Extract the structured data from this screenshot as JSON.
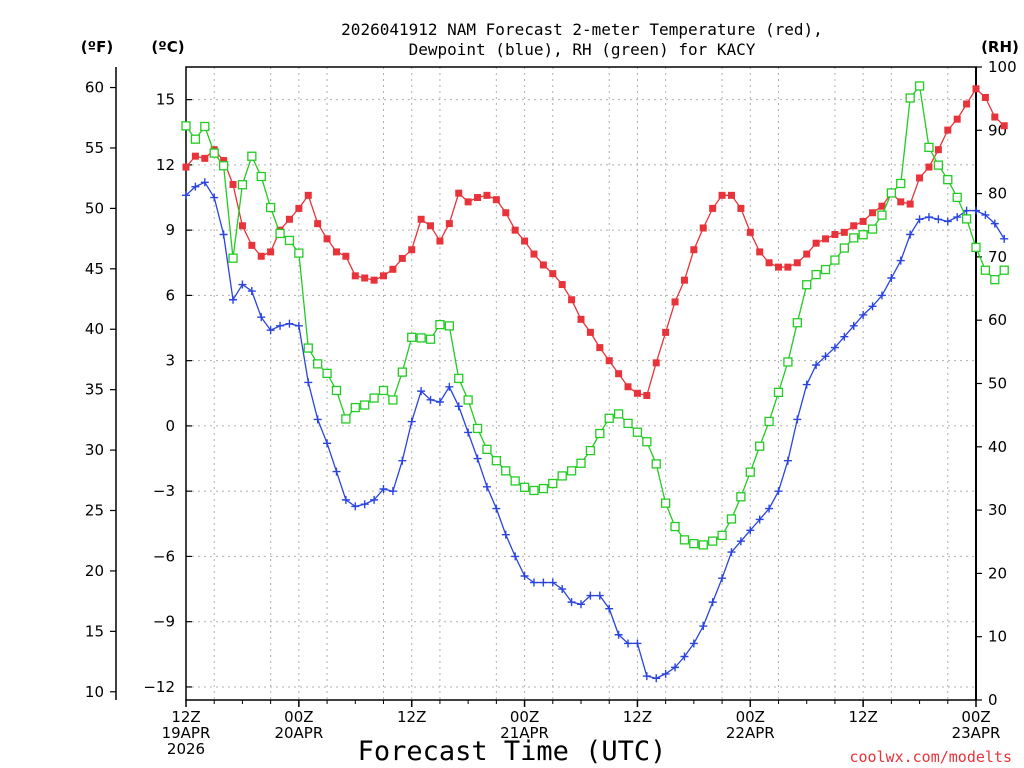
{
  "chart_data": {
    "type": "line",
    "title_line1": "2026041912 NAM Forecast 2-meter Temperature (red),",
    "title_line2": "Dewpoint (blue), RH (green) for KACY",
    "left_outer_unit": "(ºF)",
    "left_inner_unit": "(ºC)",
    "right_unit": "(RH)",
    "xlabel": "Forecast Time (UTC)",
    "credit": "coolwx.com/modelts",
    "x_range_hours": [
      0,
      84
    ],
    "celsius_range": [
      -12.6,
      16.5
    ],
    "rh_range": [
      0,
      100
    ],
    "celsius_ticks": [
      {
        "v": 15,
        "label": "15"
      },
      {
        "v": 12,
        "label": "12"
      },
      {
        "v": 9,
        "label": "9"
      },
      {
        "v": 6,
        "label": "6"
      },
      {
        "v": 3,
        "label": "3"
      },
      {
        "v": 0,
        "label": "0"
      },
      {
        "v": -3,
        "label": "−3"
      },
      {
        "v": -6,
        "label": "−6"
      },
      {
        "v": -9,
        "label": "−9"
      },
      {
        "v": -12,
        "label": "−12"
      }
    ],
    "fahrenheit_ticks": [
      {
        "v": 60,
        "label": "60"
      },
      {
        "v": 55,
        "label": "55"
      },
      {
        "v": 50,
        "label": "50"
      },
      {
        "v": 45,
        "label": "45"
      },
      {
        "v": 40,
        "label": "40"
      },
      {
        "v": 35,
        "label": "35"
      },
      {
        "v": 30,
        "label": "30"
      },
      {
        "v": 25,
        "label": "25"
      },
      {
        "v": 20,
        "label": "20"
      },
      {
        "v": 15,
        "label": "15"
      },
      {
        "v": 10,
        "label": "10"
      }
    ],
    "rh_ticks": [
      {
        "v": 100,
        "label": "100"
      },
      {
        "v": 90,
        "label": "90"
      },
      {
        "v": 80,
        "label": "80"
      },
      {
        "v": 70,
        "label": "70"
      },
      {
        "v": 60,
        "label": "60"
      },
      {
        "v": 50,
        "label": "50"
      },
      {
        "v": 40,
        "label": "40"
      },
      {
        "v": 30,
        "label": "30"
      },
      {
        "v": 20,
        "label": "20"
      },
      {
        "v": 10,
        "label": "10"
      },
      {
        "v": 0,
        "label": "0"
      }
    ],
    "x_ticks": [
      {
        "h": 0,
        "lines": [
          "12Z",
          "19APR",
          "2026"
        ]
      },
      {
        "h": 12,
        "lines": [
          "00Z",
          "20APR"
        ]
      },
      {
        "h": 24,
        "lines": [
          "12Z"
        ]
      },
      {
        "h": 36,
        "lines": [
          "00Z",
          "21APR"
        ]
      },
      {
        "h": 48,
        "lines": [
          "12Z"
        ]
      },
      {
        "h": 60,
        "lines": [
          "00Z",
          "22APR"
        ]
      },
      {
        "h": 72,
        "lines": [
          "12Z"
        ]
      },
      {
        "h": 84,
        "lines": [
          "00Z",
          "23APR"
        ]
      }
    ],
    "series": [
      {
        "name": "2-meter Temperature",
        "unit": "C",
        "color": "#e8333a",
        "marker": "square-filled",
        "values": [
          11.9,
          12.4,
          12.3,
          12.7,
          12.2,
          11.1,
          9.2,
          8.3,
          7.8,
          8.0,
          9.0,
          9.5,
          10.0,
          10.6,
          9.3,
          8.6,
          8.0,
          7.8,
          6.9,
          6.8,
          6.7,
          6.9,
          7.2,
          7.7,
          8.1,
          9.5,
          9.2,
          8.5,
          9.3,
          10.7,
          10.3,
          10.5,
          10.6,
          10.4,
          9.8,
          9.0,
          8.5,
          7.9,
          7.4,
          7.0,
          6.5,
          5.8,
          4.9,
          4.3,
          3.6,
          3.0,
          2.4,
          1.8,
          1.5,
          1.4,
          2.9,
          4.3,
          5.7,
          6.7,
          8.1,
          9.1,
          10.0,
          10.6,
          10.6,
          10.0,
          8.9,
          8.0,
          7.5,
          7.3,
          7.3,
          7.5,
          7.9,
          8.4,
          8.6,
          8.8,
          8.9,
          9.2,
          9.4,
          9.8,
          10.1,
          10.7,
          10.3,
          10.2,
          11.4,
          11.9,
          12.7,
          13.6,
          14.1,
          14.8,
          15.5,
          15.1,
          14.2,
          13.8
        ]
      },
      {
        "name": "Dewpoint",
        "unit": "C",
        "color": "#2a44e0",
        "marker": "plus",
        "values": [
          10.6,
          11.0,
          11.2,
          10.5,
          8.8,
          5.8,
          6.5,
          6.2,
          5.0,
          4.4,
          4.6,
          4.7,
          4.6,
          2.0,
          0.3,
          -0.8,
          -2.1,
          -3.4,
          -3.7,
          -3.6,
          -3.4,
          -2.9,
          -3.0,
          -1.6,
          0.2,
          1.6,
          1.2,
          1.1,
          1.8,
          0.9,
          -0.3,
          -1.5,
          -2.8,
          -3.8,
          -5.0,
          -6.0,
          -6.9,
          -7.2,
          -7.2,
          -7.2,
          -7.5,
          -8.1,
          -8.2,
          -7.8,
          -7.8,
          -8.4,
          -9.6,
          -10.0,
          -10.0,
          -11.5,
          -11.6,
          -11.4,
          -11.1,
          -10.6,
          -10.0,
          -9.2,
          -8.1,
          -7.0,
          -5.8,
          -5.3,
          -4.8,
          -4.3,
          -3.8,
          -3.0,
          -1.6,
          0.3,
          1.9,
          2.8,
          3.2,
          3.6,
          4.1,
          4.6,
          5.1,
          5.5,
          6.0,
          6.8,
          7.6,
          8.8,
          9.5,
          9.6,
          9.5,
          9.4,
          9.6,
          9.9,
          9.9,
          9.7,
          9.3,
          8.6
        ]
      },
      {
        "name": "RH",
        "unit": "%",
        "color": "#22cc22",
        "marker": "square-open",
        "values": [
          90.7,
          88.6,
          90.6,
          86.4,
          84.4,
          69.8,
          81.4,
          85.9,
          82.7,
          77.8,
          73.7,
          72.6,
          70.6,
          55.6,
          53.1,
          51.6,
          48.9,
          44.4,
          46.2,
          46.6,
          47.7,
          48.9,
          47.4,
          51.8,
          57.3,
          57.2,
          57.0,
          59.3,
          59.1,
          50.8,
          47.4,
          42.9,
          39.6,
          37.8,
          36.2,
          34.6,
          33.6,
          33.1,
          33.4,
          34.2,
          35.4,
          36.2,
          37.4,
          39.4,
          42.1,
          44.5,
          45.2,
          43.7,
          42.3,
          40.8,
          37.3,
          31.1,
          27.4,
          25.3,
          24.7,
          24.5,
          25.1,
          26.0,
          28.6,
          32.1,
          36.0,
          40.1,
          44.0,
          48.6,
          53.4,
          59.6,
          65.6,
          67.2,
          68.0,
          69.5,
          71.4,
          73.0,
          73.5,
          74.4,
          76.6,
          80.1,
          81.6,
          95.1,
          97.0,
          87.3,
          84.5,
          82.2,
          79.4,
          76.0,
          71.5,
          67.9,
          66.4,
          67.9
        ]
      }
    ]
  }
}
